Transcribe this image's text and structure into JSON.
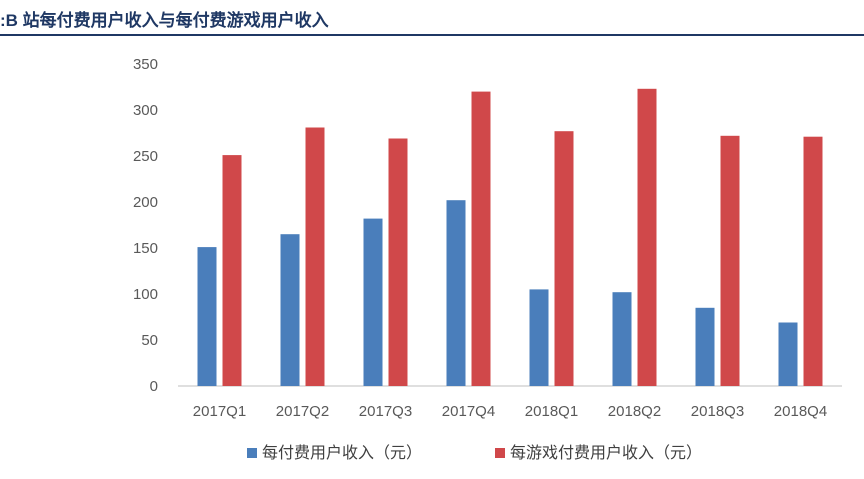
{
  "header": {
    "title": ":B 站每付费用户收入与每付费游戏用户收入"
  },
  "chart_data": {
    "type": "bar",
    "title": "",
    "xlabel": "",
    "ylabel": "",
    "categories": [
      "2017Q1",
      "2017Q2",
      "2017Q3",
      "2017Q4",
      "2018Q1",
      "2018Q2",
      "2018Q3",
      "2018Q4"
    ],
    "series": [
      {
        "name": "每付费用户收入（元）",
        "color": "#4a7ebb",
        "values": [
          151,
          165,
          182,
          202,
          105,
          102,
          85,
          69
        ]
      },
      {
        "name": "每游戏付费用户收入（元）",
        "color": "#d0484a",
        "values": [
          251,
          281,
          269,
          320,
          277,
          323,
          272,
          271
        ]
      }
    ],
    "ylim": [
      0,
      350
    ],
    "yticks": [
      0,
      50,
      100,
      150,
      200,
      250,
      300,
      350
    ],
    "grid": false,
    "legend_position": "bottom"
  }
}
